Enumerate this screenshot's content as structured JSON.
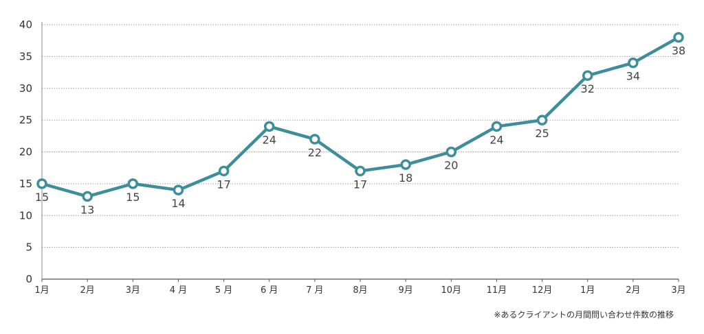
{
  "chart_data": {
    "type": "line",
    "categories": [
      "1月",
      "2月",
      "3月",
      "4 月",
      "5 月",
      "6 月",
      "7 月",
      "8月",
      "9月",
      "10月",
      "11月",
      "12月",
      "1月",
      "2月",
      "3月"
    ],
    "series": [
      {
        "values": [
          15,
          13,
          15,
          14,
          17,
          24,
          22,
          17,
          18,
          20,
          24,
          25,
          32,
          34,
          38
        ],
        "color": "#3d8e9a"
      }
    ],
    "ylim": [
      0,
      40
    ],
    "yticks": [
      "0",
      "5",
      "10",
      "15",
      "20",
      "25",
      "30",
      "35",
      "40"
    ],
    "grid": true,
    "legend": "none",
    "data_labels": [
      "15",
      "13",
      "15",
      "14",
      "17",
      "24",
      "22",
      "17",
      "18",
      "20",
      "24",
      "25",
      "32",
      "34",
      "38"
    ],
    "caption": "※あるクライアントの月間問い合わせ件数の推移"
  }
}
